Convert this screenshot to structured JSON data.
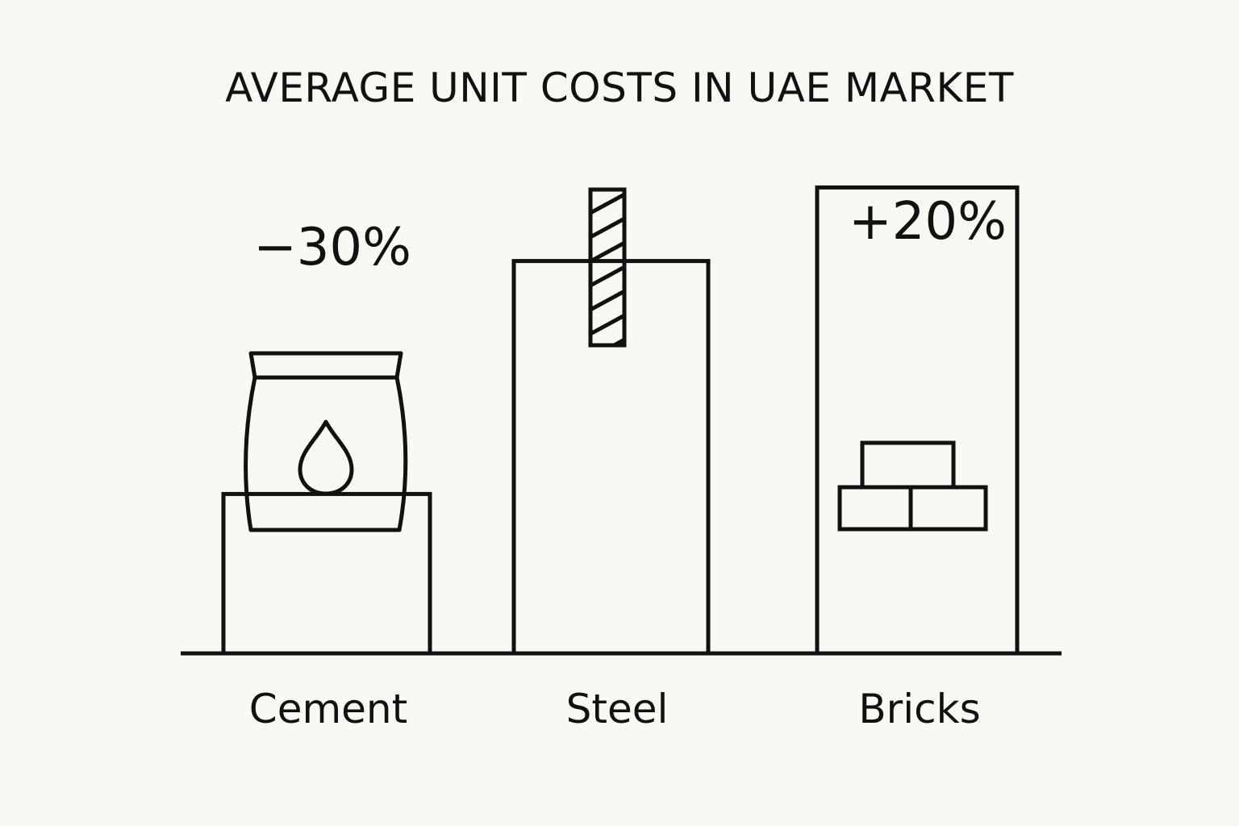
{
  "chart_data": {
    "type": "bar",
    "title": "AVERAGE UNIT COSTS IN UAE MARKET",
    "categories": [
      "Cement",
      "Steel",
      "Bricks"
    ],
    "values": [
      2.6,
      6.4,
      7.6
    ],
    "change_labels": [
      "−30%",
      "",
      "+20%"
    ],
    "icons": [
      "cement-bag-icon",
      "steel-rebar-icon",
      "bricks-icon"
    ],
    "xlabel": "",
    "ylabel": "",
    "ylim": [
      0,
      10
    ],
    "grid": false,
    "legend": "none"
  },
  "colors": {
    "background": "#faf8f3",
    "ink": "#111111"
  }
}
